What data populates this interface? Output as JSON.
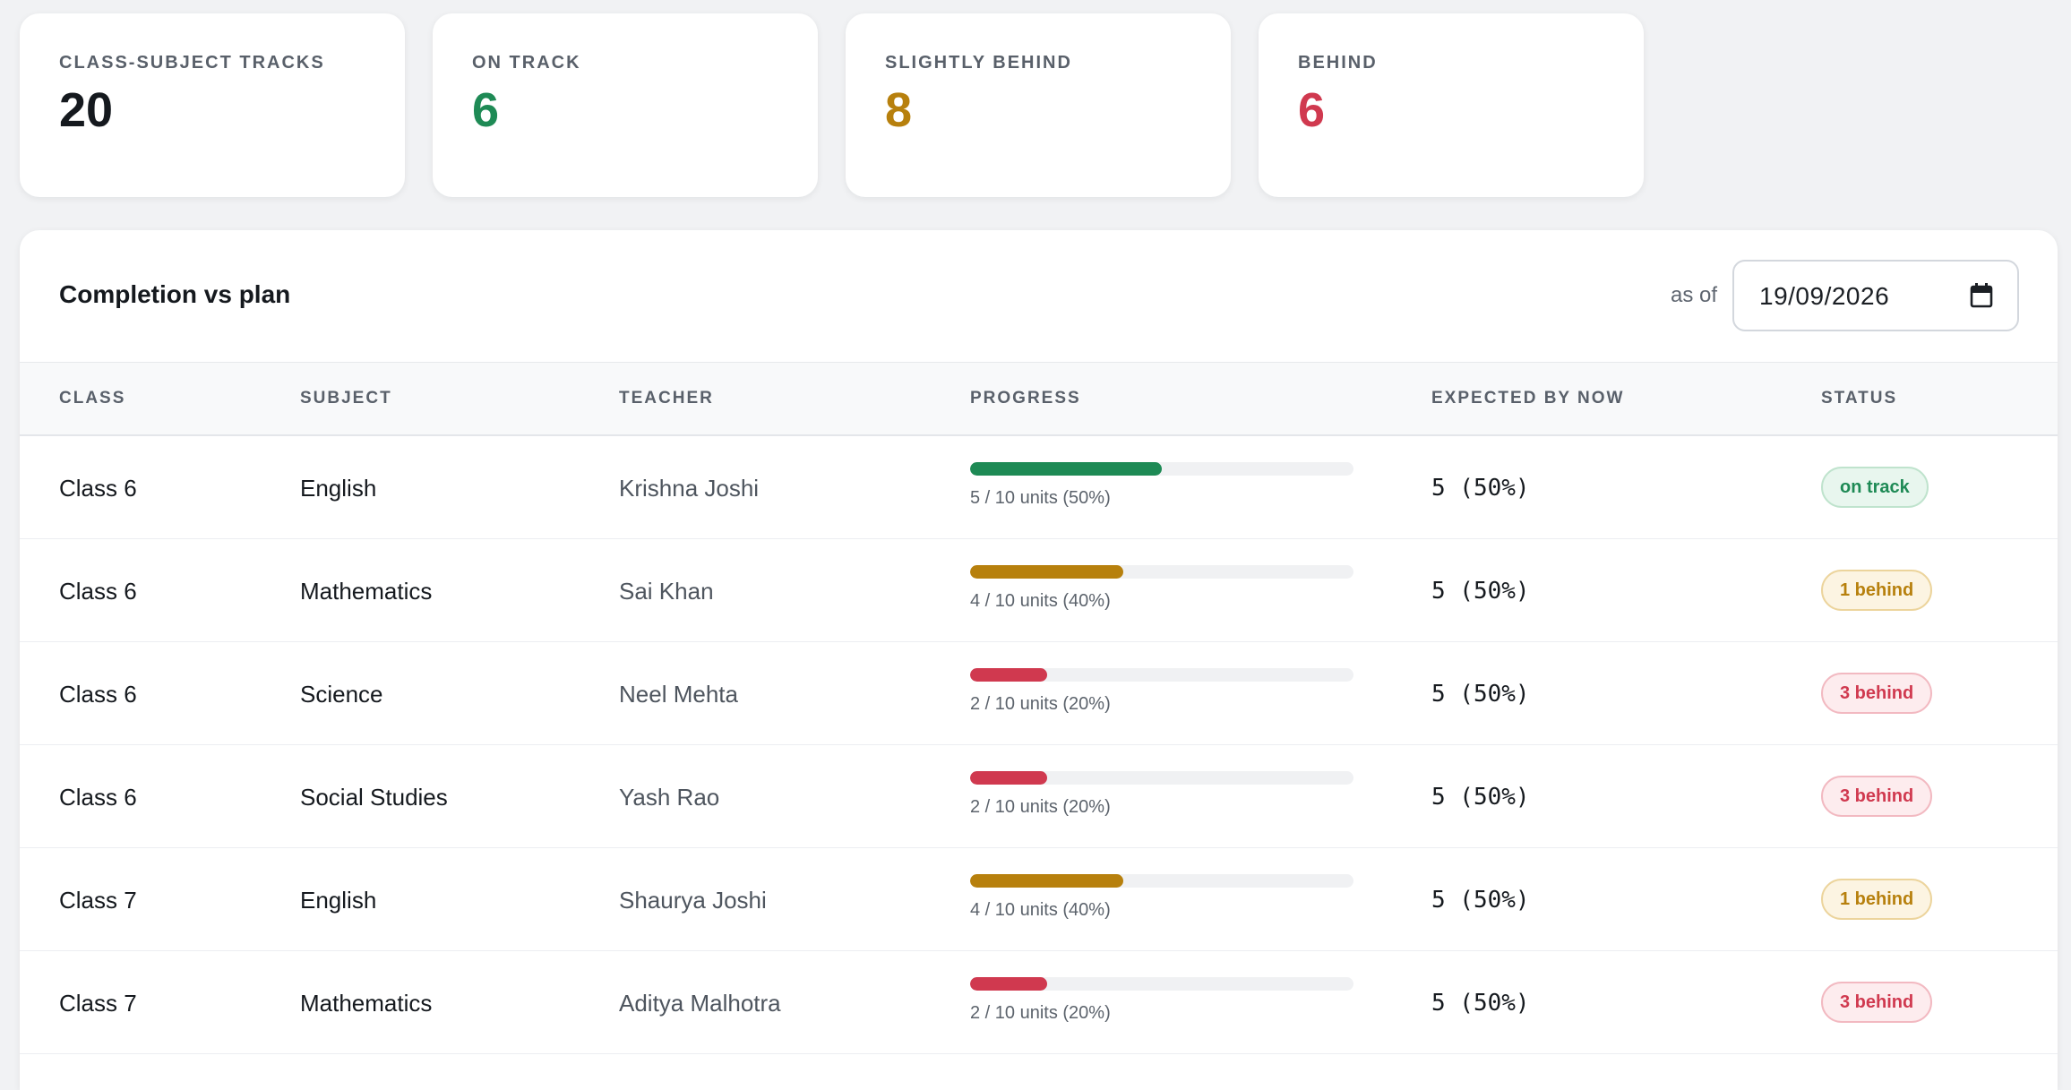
{
  "stats": [
    {
      "label": "CLASS-SUBJECT TRACKS",
      "value": "20",
      "color": "#15191e"
    },
    {
      "label": "ON TRACK",
      "value": "6",
      "color": "#1e8a55"
    },
    {
      "label": "SLIGHTLY BEHIND",
      "value": "8",
      "color": "#b7800d"
    },
    {
      "label": "BEHIND",
      "value": "6",
      "color": "#d0394f"
    }
  ],
  "panel": {
    "title": "Completion vs plan",
    "as_of_label": "as of",
    "date_value": "19/09/2026",
    "calendar_icon": "calendar-icon"
  },
  "table": {
    "headers": {
      "class": "CLASS",
      "subject": "SUBJECT",
      "teacher": "TEACHER",
      "progress": "PROGRESS",
      "expected": "EXPECTED BY NOW",
      "status": "STATUS"
    },
    "rows": [
      {
        "class": "Class 6",
        "subject": "English",
        "teacher": "Krishna Joshi",
        "progress": 0.5,
        "progress_text": "5 / 10 units (50%)",
        "expected": "5 (50%)",
        "status": "on track",
        "status_kind": "ok"
      },
      {
        "class": "Class 6",
        "subject": "Mathematics",
        "teacher": "Sai Khan",
        "progress": 0.4,
        "progress_text": "4 / 10 units (40%)",
        "expected": "5 (50%)",
        "status": "1 behind",
        "status_kind": "slight"
      },
      {
        "class": "Class 6",
        "subject": "Science",
        "teacher": "Neel Mehta",
        "progress": 0.2,
        "progress_text": "2 / 10 units (20%)",
        "expected": "5 (50%)",
        "status": "3 behind",
        "status_kind": "behind"
      },
      {
        "class": "Class 6",
        "subject": "Social Studies",
        "teacher": "Yash Rao",
        "progress": 0.2,
        "progress_text": "2 / 10 units (20%)",
        "expected": "5 (50%)",
        "status": "3 behind",
        "status_kind": "behind"
      },
      {
        "class": "Class 7",
        "subject": "English",
        "teacher": "Shaurya Joshi",
        "progress": 0.4,
        "progress_text": "4 / 10 units (40%)",
        "expected": "5 (50%)",
        "status": "1 behind",
        "status_kind": "slight"
      },
      {
        "class": "Class 7",
        "subject": "Mathematics",
        "teacher": "Aditya Malhotra",
        "progress": 0.2,
        "progress_text": "2 / 10 units (20%)",
        "expected": "5 (50%)",
        "status": "3 behind",
        "status_kind": "behind"
      }
    ]
  },
  "colors": {
    "ok": "#1e8a55",
    "slight": "#b7800d",
    "behind": "#d0394f"
  }
}
